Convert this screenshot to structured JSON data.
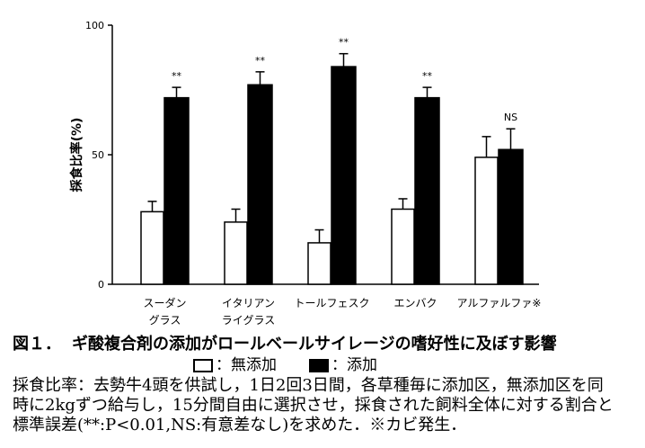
{
  "chart_data": {
    "type": "bar",
    "categories": [
      [
        "スーダン",
        "グラス"
      ],
      [
        "イタリアン",
        "ライグラス"
      ],
      [
        "トールフェスク"
      ],
      [
        "エンバク"
      ],
      [
        "アルファルファ※"
      ]
    ],
    "series": [
      {
        "name": "無添加",
        "values": [
          28,
          24,
          16,
          29,
          49
        ],
        "errors": [
          4,
          5,
          5,
          4,
          8
        ],
        "color": "#ffffff"
      },
      {
        "name": "添加",
        "values": [
          72,
          77,
          84,
          72,
          52
        ],
        "errors": [
          4,
          5,
          5,
          4,
          8
        ],
        "color": "#000000"
      }
    ],
    "significance": [
      "**",
      "**",
      "**",
      "**",
      "NS"
    ],
    "xlabel": "",
    "ylabel": "採食比率(%)",
    "ylim": [
      0,
      100
    ],
    "yticks": [
      0,
      50,
      100
    ],
    "grid": false,
    "legend": "bottom"
  },
  "caption": {
    "figure_label": "図１．",
    "title": "ギ酸複合剤の添加がロールベールサイレージの嗜好性に及ぼす影響",
    "legend_separator": "：",
    "notes": [
      "採食比率：去勢牛4頭を供試し，1日2回3日間，各草種毎に添加区，無添加区を同",
      "時に2kgずつ給与し，15分間自由に選択させ，採食された飼料全体に対する割合と",
      "標準誤差(**:P<0.01,NS:有意差なし)を求めた．※カビ発生．"
    ]
  }
}
